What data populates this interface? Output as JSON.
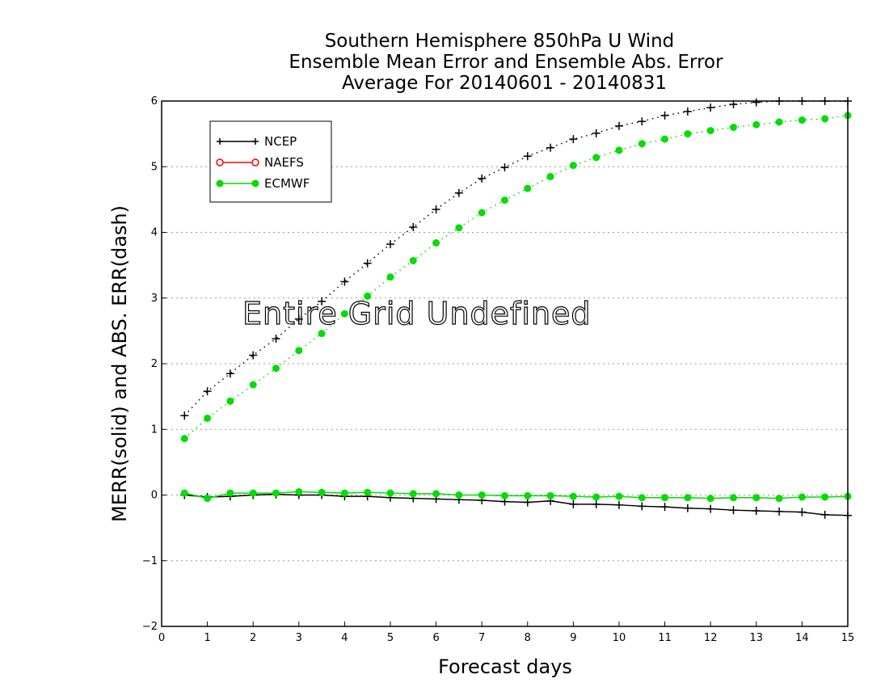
{
  "chart_data": {
    "type": "line",
    "title_lines": [
      "Southern Hemisphere 850hPa U Wind",
      "Ensemble Mean Error and Ensemble Abs. Error",
      "Average For 20140601 - 20140831"
    ],
    "xlabel": "Forecast days",
    "ylabel": "MERR(solid) and ABS. ERR(dash)",
    "xlim": [
      0,
      15
    ],
    "ylim": [
      -2,
      6
    ],
    "x_ticks": [
      "0",
      "1",
      "2",
      "3",
      "4",
      "5",
      "6",
      "7",
      "8",
      "9",
      "10",
      "11",
      "12",
      "13",
      "14",
      "15"
    ],
    "y_ticks": [
      "−2",
      "−1",
      "0",
      "1",
      "2",
      "3",
      "4",
      "5",
      "6"
    ],
    "y_tick_values": [
      -2,
      -1,
      0,
      1,
      2,
      3,
      4,
      5,
      6
    ],
    "grid": "horizontal dotted",
    "legend_position": "top-left",
    "annotation": "Entire Grid Undefined",
    "x": [
      0.5,
      1,
      1.5,
      2,
      2.5,
      3,
      3.5,
      4,
      4.5,
      5,
      5.5,
      6,
      6.5,
      7,
      7.5,
      8,
      8.5,
      9,
      9.5,
      10,
      10.5,
      11,
      11.5,
      12,
      12.5,
      13,
      13.5,
      14,
      14.5,
      15
    ],
    "series": [
      {
        "name": "NCEP",
        "color": "#000000",
        "marker": "plus",
        "merr": [
          0.0,
          -0.03,
          -0.02,
          0.0,
          0.01,
          0.0,
          0.0,
          -0.02,
          -0.02,
          -0.04,
          -0.05,
          -0.06,
          -0.07,
          -0.08,
          -0.1,
          -0.11,
          -0.09,
          -0.14,
          -0.14,
          -0.15,
          -0.17,
          -0.18,
          -0.2,
          -0.21,
          -0.23,
          -0.24,
          -0.25,
          -0.26,
          -0.3,
          -0.31
        ],
        "abs_err": [
          1.21,
          1.58,
          1.85,
          2.13,
          2.38,
          2.68,
          2.95,
          3.25,
          3.53,
          3.82,
          4.08,
          4.35,
          4.6,
          4.82,
          4.99,
          5.16,
          5.29,
          5.42,
          5.51,
          5.62,
          5.69,
          5.78,
          5.84,
          5.9,
          5.95,
          5.98,
          6.0,
          6.0,
          6.0,
          6.0
        ]
      },
      {
        "name": "NAEFS",
        "color": "#ff0000",
        "marker": "open-circle",
        "merr": [],
        "abs_err": []
      },
      {
        "name": "ECMWF",
        "color": "#00dd00",
        "marker": "filled-circle",
        "merr": [
          0.03,
          -0.05,
          0.03,
          0.03,
          0.03,
          0.05,
          0.04,
          0.03,
          0.04,
          0.03,
          0.02,
          0.02,
          0.0,
          0.0,
          -0.01,
          -0.01,
          -0.01,
          -0.02,
          -0.03,
          -0.02,
          -0.04,
          -0.04,
          -0.04,
          -0.05,
          -0.04,
          -0.04,
          -0.05,
          -0.03,
          -0.03,
          -0.02
        ],
        "abs_err": [
          0.86,
          1.17,
          1.43,
          1.68,
          1.93,
          2.2,
          2.46,
          2.76,
          3.03,
          3.32,
          3.57,
          3.84,
          4.07,
          4.3,
          4.49,
          4.67,
          4.85,
          5.02,
          5.14,
          5.25,
          5.35,
          5.42,
          5.5,
          5.55,
          5.6,
          5.64,
          5.68,
          5.71,
          5.73,
          5.78
        ]
      }
    ]
  }
}
